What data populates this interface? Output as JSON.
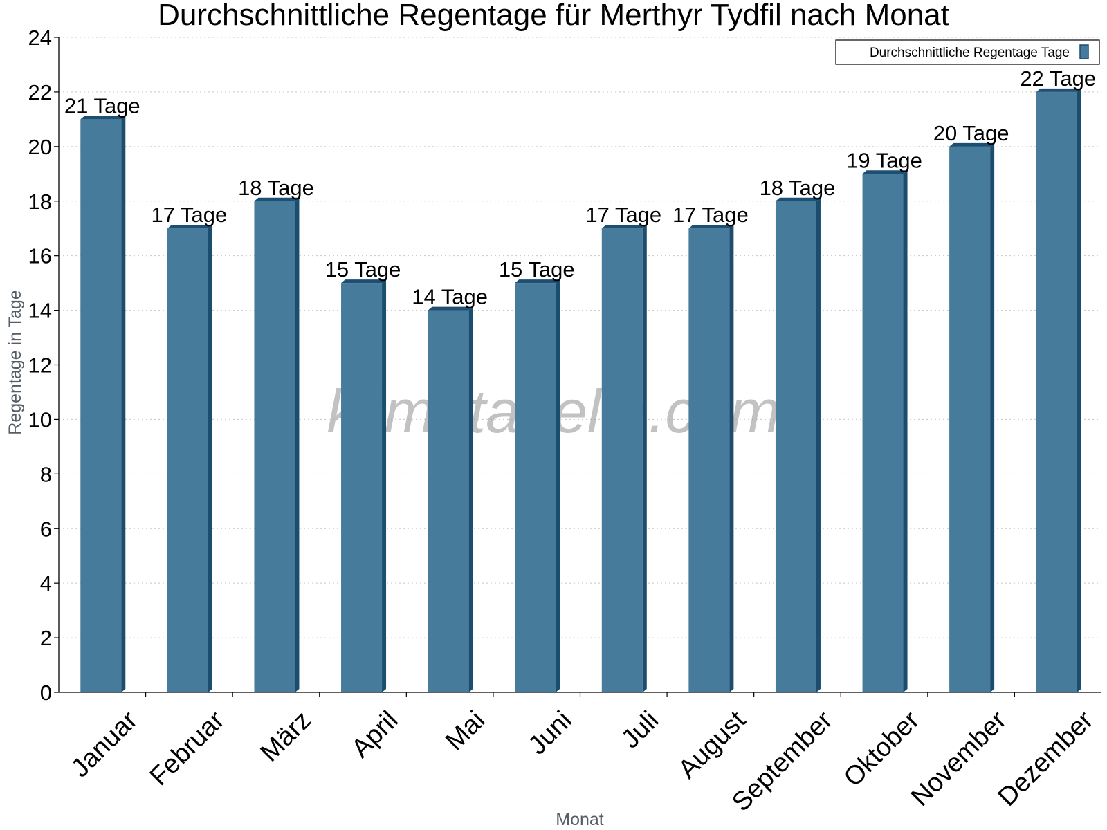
{
  "watermark": "klimatabelle.com",
  "colors": {
    "bar_front": "#467b9c",
    "bar_side": "#1b4d6e",
    "bar_top": "#1d4f72",
    "grid": "#c8c8c8",
    "axis": "#000000"
  },
  "chart_data": {
    "type": "bar",
    "title": "Durchschnittliche Regentage für Merthyr Tydfil nach Monat",
    "xlabel": "Monat",
    "ylabel": "Regentage in Tage",
    "categories": [
      "Januar",
      "Februar",
      "März",
      "April",
      "Mai",
      "Juni",
      "Juli",
      "August",
      "September",
      "Oktober",
      "November",
      "Dezember"
    ],
    "series": [
      {
        "name": "Durchschnittliche Regentage Tage",
        "values": [
          21,
          17,
          18,
          15,
          14,
          15,
          17,
          17,
          18,
          19,
          20,
          22
        ],
        "labels": [
          "21 Tage",
          "17 Tage",
          "18 Tage",
          "15 Tage",
          "14 Tage",
          "15 Tage",
          "17 Tage",
          "17 Tage",
          "18 Tage",
          "19 Tage",
          "20 Tage",
          "22 Tage"
        ]
      }
    ],
    "ylim": [
      0,
      24
    ],
    "yticks": [
      0,
      2,
      4,
      6,
      8,
      10,
      12,
      14,
      16,
      18,
      20,
      22,
      24
    ],
    "grid": "horizontal dotted",
    "legend": "top-right"
  }
}
